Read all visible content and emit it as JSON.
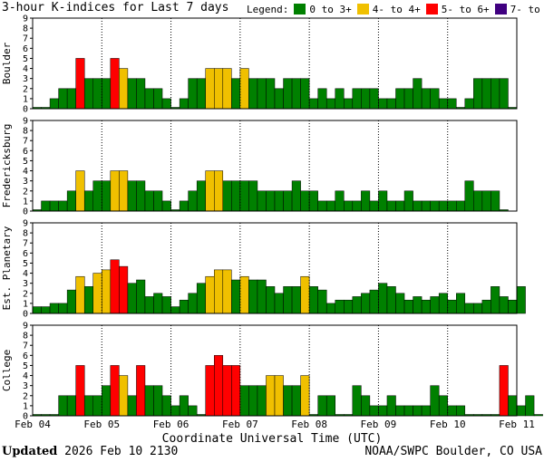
{
  "title": "3-hour K-indices for Last 7 days",
  "legend": {
    "label": "Legend:",
    "items": [
      {
        "label": "0 to 3+",
        "color": "#008000"
      },
      {
        "label": "4- to 4+",
        "color": "#f0c000"
      },
      {
        "label": "5- to 6+",
        "color": "#ff0000"
      },
      {
        "label": "7- to 9",
        "color": "#400080"
      }
    ]
  },
  "footer": {
    "updated_label": "Updated",
    "updated_value": "2026 Feb 10 2130",
    "credit": "NOAA/SWPC Boulder, CO USA"
  },
  "chart_data": {
    "type": "bar",
    "xlabel": "Coordinate Universal Time (UTC)",
    "x_ticks": [
      "Feb 04",
      "Feb 05",
      "Feb 06",
      "Feb 07",
      "Feb 08",
      "Feb 09",
      "Feb 10",
      "Feb 11"
    ],
    "ylim": [
      0,
      9
    ],
    "y_ticks": [
      0,
      1,
      2,
      3,
      4,
      5,
      6,
      7,
      8,
      9
    ],
    "bins_per_day": 8,
    "color_scale": [
      {
        "range": "0 to 3+",
        "color": "#008000"
      },
      {
        "range": "4- to 4+",
        "color": "#f0c000"
      },
      {
        "range": "5- to 6+",
        "color": "#ff0000"
      },
      {
        "range": "7- to 9",
        "color": "#400080"
      }
    ],
    "panels": [
      {
        "name": "Boulder",
        "values": [
          0,
          0,
          1,
          2,
          2,
          5,
          3,
          3,
          3,
          5,
          4,
          3,
          3,
          2,
          2,
          1,
          0,
          1,
          3,
          3,
          4,
          4,
          4,
          3,
          4,
          3,
          3,
          3,
          2,
          3,
          3,
          3,
          1,
          2,
          1,
          2,
          1,
          2,
          2,
          2,
          1,
          1,
          2,
          2,
          3,
          2,
          2,
          1,
          1,
          0,
          1,
          3,
          3,
          3,
          3,
          0
        ]
      },
      {
        "name": "Fredericksburg",
        "values": [
          0,
          1,
          1,
          1,
          2,
          4,
          2,
          3,
          3,
          4,
          4,
          3,
          3,
          2,
          2,
          1,
          0,
          1,
          2,
          3,
          4,
          4,
          3,
          3,
          3,
          3,
          2,
          2,
          2,
          2,
          3,
          2,
          2,
          1,
          1,
          2,
          1,
          1,
          2,
          1,
          2,
          1,
          1,
          2,
          1,
          1,
          1,
          1,
          1,
          1,
          3,
          2,
          2,
          2,
          0
        ]
      },
      {
        "name": "Est. Planetary",
        "values": [
          0.67,
          0.67,
          1,
          1,
          2.33,
          3.67,
          2.67,
          4,
          4.33,
          5.33,
          4.67,
          3,
          3.33,
          1.67,
          2,
          1.67,
          0.67,
          1.33,
          2,
          3,
          3.67,
          4.33,
          4.33,
          3.33,
          3.67,
          3.33,
          3.33,
          2.67,
          2,
          2.67,
          2.67,
          3.67,
          2.67,
          2.33,
          1,
          1.33,
          1.33,
          1.67,
          2,
          2.33,
          3,
          2.67,
          2,
          1.33,
          1.67,
          1.33,
          1.67,
          2,
          1.33,
          2,
          1,
          1,
          1.33,
          2.67,
          1.67,
          1.33,
          2.67
        ]
      },
      {
        "name": "College",
        "values": [
          0,
          0,
          0,
          2,
          2,
          5,
          2,
          2,
          3,
          5,
          4,
          2,
          5,
          3,
          3,
          2,
          1,
          2,
          1,
          0,
          5,
          6,
          5,
          5,
          3,
          3,
          3,
          4,
          4,
          3,
          3,
          4,
          0,
          2,
          2,
          0,
          0,
          3,
          2,
          1,
          1,
          2,
          1,
          1,
          1,
          1,
          3,
          2,
          1,
          1,
          0,
          0,
          0,
          0,
          5,
          2,
          1,
          2,
          0
        ]
      }
    ]
  }
}
